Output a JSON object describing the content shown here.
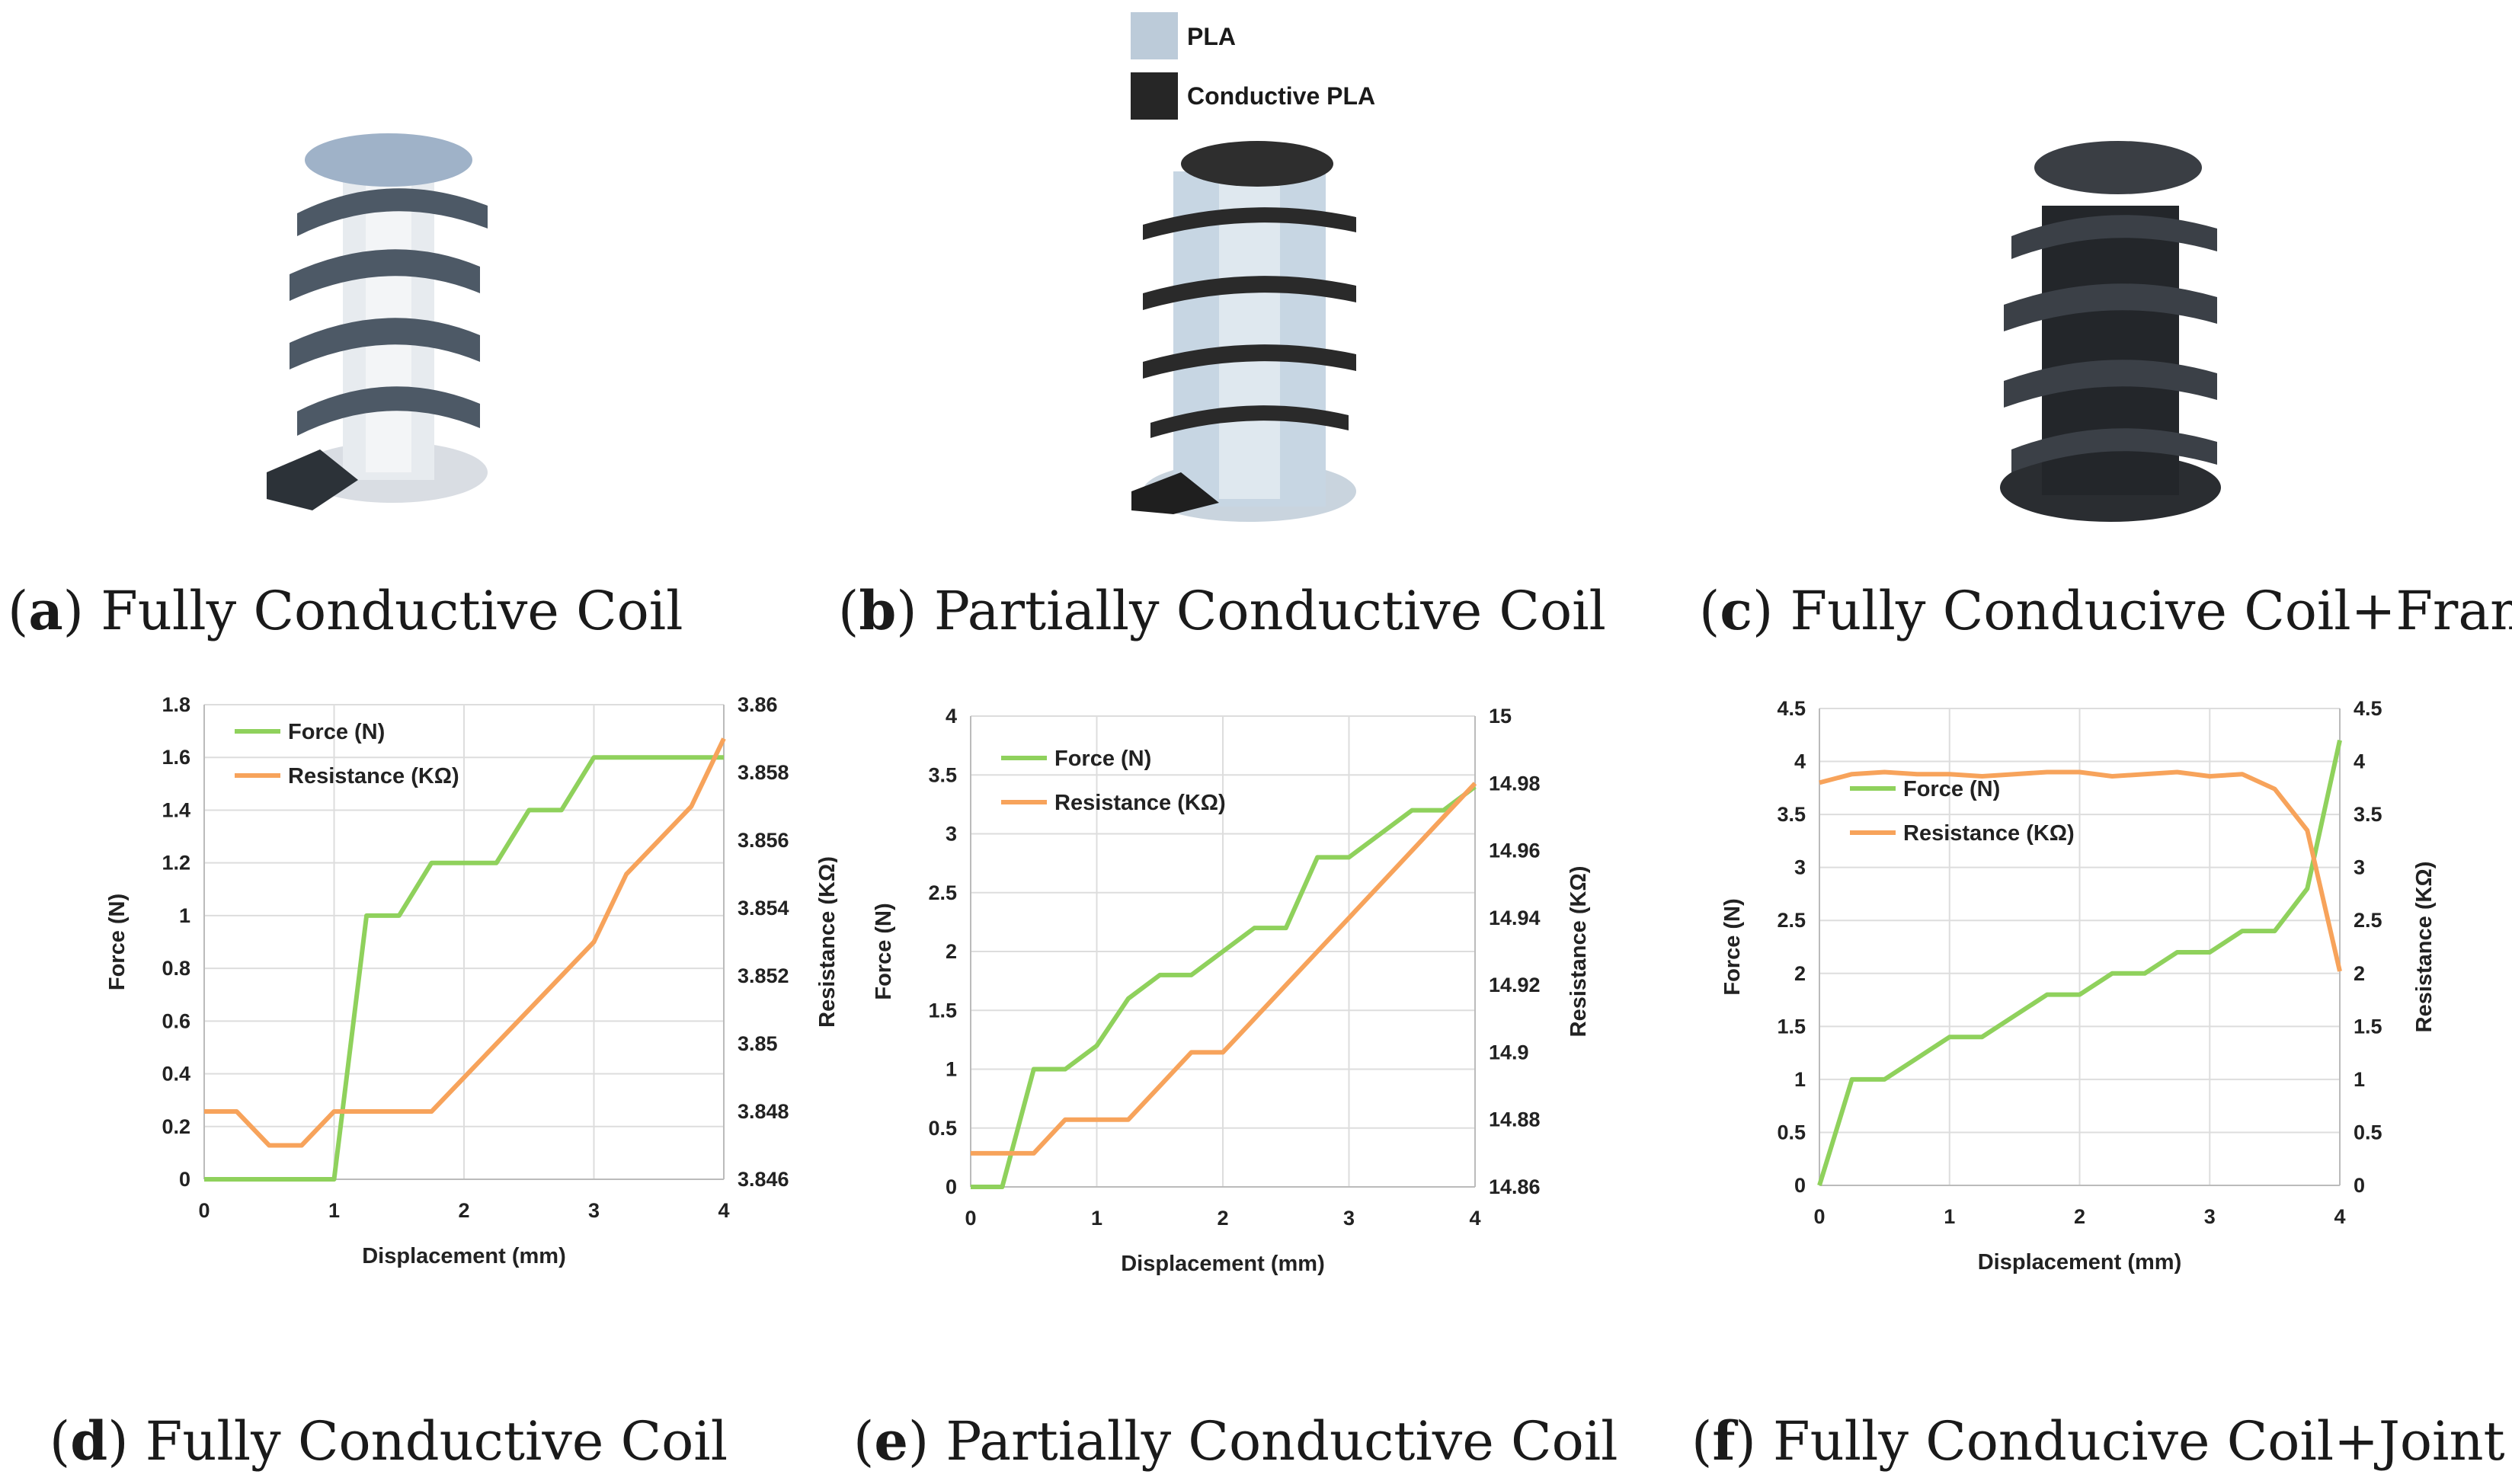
{
  "legend_top": {
    "items": [
      {
        "label": "PLA",
        "color": "#bccbd9"
      },
      {
        "label": "Conductive PLA",
        "color": "#262626"
      }
    ]
  },
  "photos": [
    {
      "id": "a",
      "caption_letter": "a",
      "caption_text": "Fully Conductive Coil"
    },
    {
      "id": "b",
      "caption_letter": "b",
      "caption_text": "Partially Conductive Coil"
    },
    {
      "id": "c",
      "caption_letter": "c",
      "caption_text": "Fully Conducive Coil+Frame"
    }
  ],
  "chart_captions": [
    {
      "letter": "d",
      "text": "Fully Conductive Coil"
    },
    {
      "letter": "e",
      "text": "Partially Conductive Coil"
    },
    {
      "letter": "f",
      "text": "Fully Conducive Coil+Joint"
    }
  ],
  "colors": {
    "force": "#8fd15c",
    "resistance": "#f7a35b",
    "grid": "#dddddd"
  },
  "chart_data": [
    {
      "type": "line",
      "xlabel": "Displacement (mm)",
      "ylabel": "Force (N)",
      "y2label": "Resistance (KΩ)",
      "x": [
        0,
        0.25,
        0.5,
        0.75,
        1,
        1.25,
        1.5,
        1.75,
        2,
        2.25,
        2.5,
        2.75,
        3,
        3.25,
        3.5,
        3.75,
        4
      ],
      "xlim": [
        0,
        4
      ],
      "xticks": [
        "0",
        "1",
        "2",
        "3",
        "4"
      ],
      "ylim": [
        0,
        1.8
      ],
      "yticks": [
        "0",
        "0.2",
        "0.4",
        "0.6",
        "0.8",
        "1",
        "1.2",
        "1.4",
        "1.6",
        "1.8"
      ],
      "y2lim": [
        3.846,
        3.86
      ],
      "y2ticks": [
        "3.846",
        "3.848",
        "3.85",
        "3.852",
        "3.854",
        "3.856",
        "3.858",
        "3.86"
      ],
      "series": [
        {
          "name": "Force (N)",
          "axis": "left",
          "values": [
            0,
            0,
            0,
            0,
            0,
            1,
            1,
            1.2,
            1.2,
            1.2,
            1.4,
            1.4,
            1.6,
            1.6,
            1.6,
            1.6,
            1.6
          ]
        },
        {
          "name": "Resistance  (KΩ)",
          "axis": "right",
          "values": [
            3.848,
            3.848,
            3.847,
            3.847,
            3.848,
            3.848,
            3.848,
            3.848,
            3.849,
            3.85,
            3.851,
            3.852,
            3.853,
            3.855,
            3.856,
            3.857,
            3.859
          ]
        }
      ]
    },
    {
      "type": "line",
      "xlabel": "Displacement (mm)",
      "ylabel": "Force (N)",
      "y2label": "Resistance (KΩ)",
      "x": [
        0,
        0.25,
        0.5,
        0.75,
        1,
        1.25,
        1.5,
        1.75,
        2,
        2.25,
        2.5,
        2.75,
        3,
        3.25,
        3.5,
        3.75,
        4
      ],
      "xlim": [
        0,
        4
      ],
      "xticks": [
        "0",
        "1",
        "2",
        "3",
        "4"
      ],
      "ylim": [
        0,
        4
      ],
      "yticks": [
        "0",
        "0.5",
        "1",
        "1.5",
        "2",
        "2.5",
        "3",
        "3.5",
        "4"
      ],
      "y2lim": [
        14.86,
        15
      ],
      "y2ticks": [
        "14.86",
        "14.88",
        "14.9",
        "14.92",
        "14.94",
        "14.96",
        "14.98",
        "15"
      ],
      "series": [
        {
          "name": "Force (N)",
          "axis": "left",
          "values": [
            0,
            0,
            1,
            1,
            1.2,
            1.6,
            1.8,
            1.8,
            2,
            2.2,
            2.2,
            2.8,
            2.8,
            3,
            3.2,
            3.2,
            3.4
          ]
        },
        {
          "name": "Resistance  (KΩ)",
          "axis": "right",
          "values": [
            14.87,
            14.87,
            14.87,
            14.88,
            14.88,
            14.88,
            14.89,
            14.9,
            14.9,
            14.91,
            14.92,
            14.93,
            14.94,
            14.95,
            14.96,
            14.97,
            14.98
          ]
        }
      ]
    },
    {
      "type": "line",
      "xlabel": "Displacement (mm)",
      "ylabel": "Force (N)",
      "y2label": "Resistance  (KΩ)",
      "x": [
        0,
        0.25,
        0.5,
        0.75,
        1,
        1.25,
        1.5,
        1.75,
        2,
        2.25,
        2.5,
        2.75,
        3,
        3.25,
        3.5,
        3.75,
        4
      ],
      "xlim": [
        0,
        4
      ],
      "xticks": [
        "0",
        "1",
        "2",
        "3",
        "4"
      ],
      "ylim": [
        0,
        4.5
      ],
      "yticks": [
        "0",
        "0.5",
        "1",
        "1.5",
        "2",
        "2.5",
        "3",
        "3.5",
        "4",
        "4.5"
      ],
      "y2lim": [
        0,
        4.5
      ],
      "y2ticks": [
        "0",
        "0.5",
        "1",
        "1.5",
        "2",
        "2.5",
        "3",
        "3.5",
        "4",
        "4.5"
      ],
      "series": [
        {
          "name": "Force (N)",
          "axis": "left",
          "values": [
            0,
            1,
            1,
            1.2,
            1.4,
            1.4,
            1.6,
            1.8,
            1.8,
            2,
            2,
            2.2,
            2.2,
            2.4,
            2.4,
            2.8,
            4.2
          ]
        },
        {
          "name": "Resistance  (KΩ)",
          "axis": "right",
          "values": [
            3.8,
            3.88,
            3.9,
            3.88,
            3.88,
            3.86,
            3.88,
            3.9,
            3.9,
            3.86,
            3.88,
            3.9,
            3.86,
            3.88,
            3.74,
            3.35,
            2.02
          ]
        }
      ]
    }
  ]
}
